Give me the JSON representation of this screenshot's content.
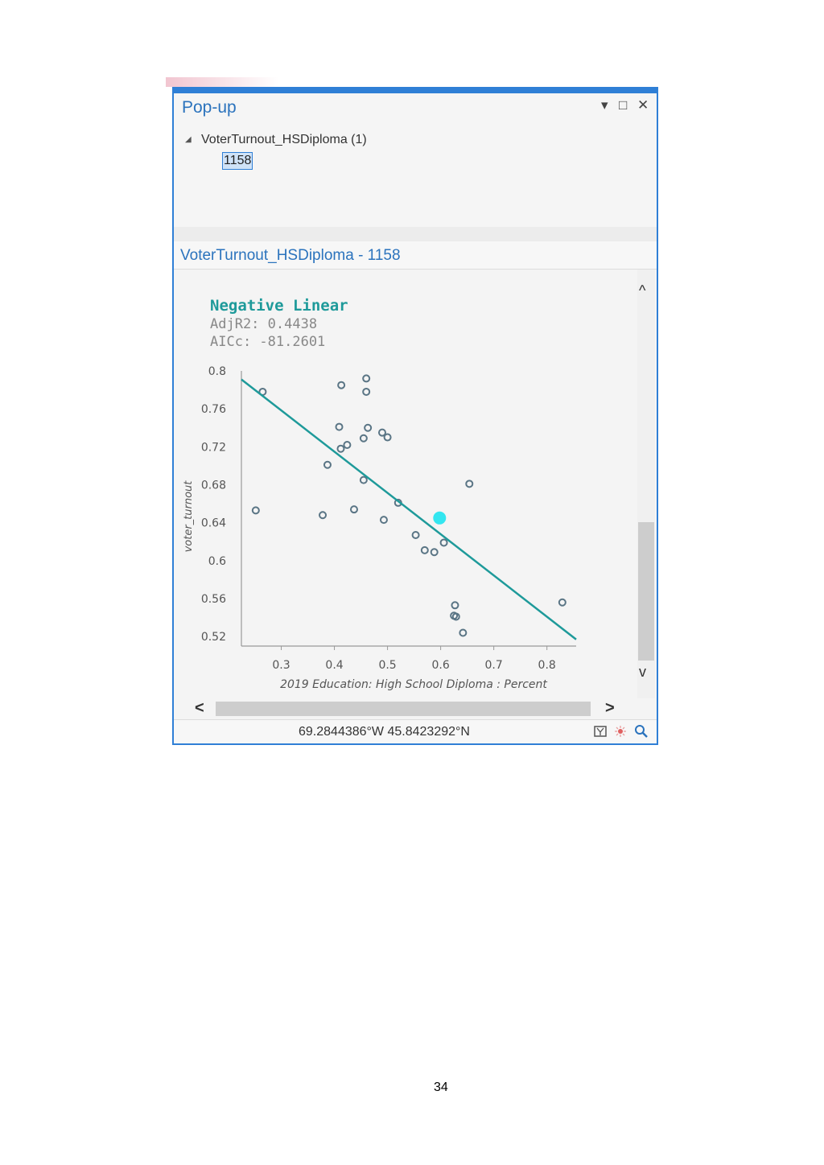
{
  "window": {
    "title": "Pop-up",
    "buttons": {
      "menu": "▾",
      "maximize": "□",
      "close": "✕"
    }
  },
  "tree": {
    "layer_label": "VoterTurnout_HSDiploma  (1)",
    "item": "1158",
    "toggle_icon": "collapse-triangle-icon"
  },
  "detail": {
    "title": "VoterTurnout_HSDiploma - 1158"
  },
  "stats": {
    "title": "Negative Linear",
    "adjr2": "AdjR2: 0.4438",
    "aicc": "AICc: -81.2601"
  },
  "chart_data": {
    "type": "scatter",
    "title": "Negative Linear",
    "xlabel": "2019 Education: High School Diploma : Percent",
    "ylabel": "voter_turnout",
    "x_ticks": [
      "0.3",
      "0.4",
      "0.5",
      "0.6",
      "0.7",
      "0.8"
    ],
    "y_ticks": [
      "0.8",
      "0.76",
      "0.72",
      "0.68",
      "0.64",
      "0.6",
      "0.56",
      "0.52"
    ],
    "xlim": [
      0.225,
      0.855
    ],
    "ylim": [
      0.51,
      0.8
    ],
    "points": [
      {
        "x": 0.265,
        "y": 0.778
      },
      {
        "x": 0.413,
        "y": 0.785
      },
      {
        "x": 0.46,
        "y": 0.792
      },
      {
        "x": 0.46,
        "y": 0.778
      },
      {
        "x": 0.409,
        "y": 0.741
      },
      {
        "x": 0.463,
        "y": 0.74
      },
      {
        "x": 0.49,
        "y": 0.735
      },
      {
        "x": 0.5,
        "y": 0.73
      },
      {
        "x": 0.455,
        "y": 0.729
      },
      {
        "x": 0.424,
        "y": 0.722
      },
      {
        "x": 0.412,
        "y": 0.718
      },
      {
        "x": 0.387,
        "y": 0.701
      },
      {
        "x": 0.455,
        "y": 0.685
      },
      {
        "x": 0.654,
        "y": 0.681
      },
      {
        "x": 0.252,
        "y": 0.653
      },
      {
        "x": 0.378,
        "y": 0.648
      },
      {
        "x": 0.437,
        "y": 0.654
      },
      {
        "x": 0.493,
        "y": 0.643
      },
      {
        "x": 0.52,
        "y": 0.661
      },
      {
        "x": 0.553,
        "y": 0.627
      },
      {
        "x": 0.57,
        "y": 0.611
      },
      {
        "x": 0.588,
        "y": 0.609
      },
      {
        "x": 0.606,
        "y": 0.619
      },
      {
        "x": 0.627,
        "y": 0.553
      },
      {
        "x": 0.625,
        "y": 0.542
      },
      {
        "x": 0.629,
        "y": 0.541
      },
      {
        "x": 0.642,
        "y": 0.524
      },
      {
        "x": 0.829,
        "y": 0.556
      }
    ],
    "highlight_point": {
      "x": 0.598,
      "y": 0.645
    },
    "trend_line": [
      {
        "x": 0.225,
        "y": 0.791
      },
      {
        "x": 0.855,
        "y": 0.517
      }
    ],
    "colors": {
      "line": "#1e9a9a",
      "point": "#5a7585",
      "highlight": "#33e6f0",
      "axis": "#999999"
    }
  },
  "scroll": {
    "up": "^",
    "down": "v",
    "left": "<",
    "right": ">"
  },
  "status": {
    "coords": "69.2844386°W 45.8423292°N",
    "icons": [
      "window-icon",
      "flash-icon",
      "zoom-icon"
    ]
  },
  "page": {
    "number": "34"
  }
}
